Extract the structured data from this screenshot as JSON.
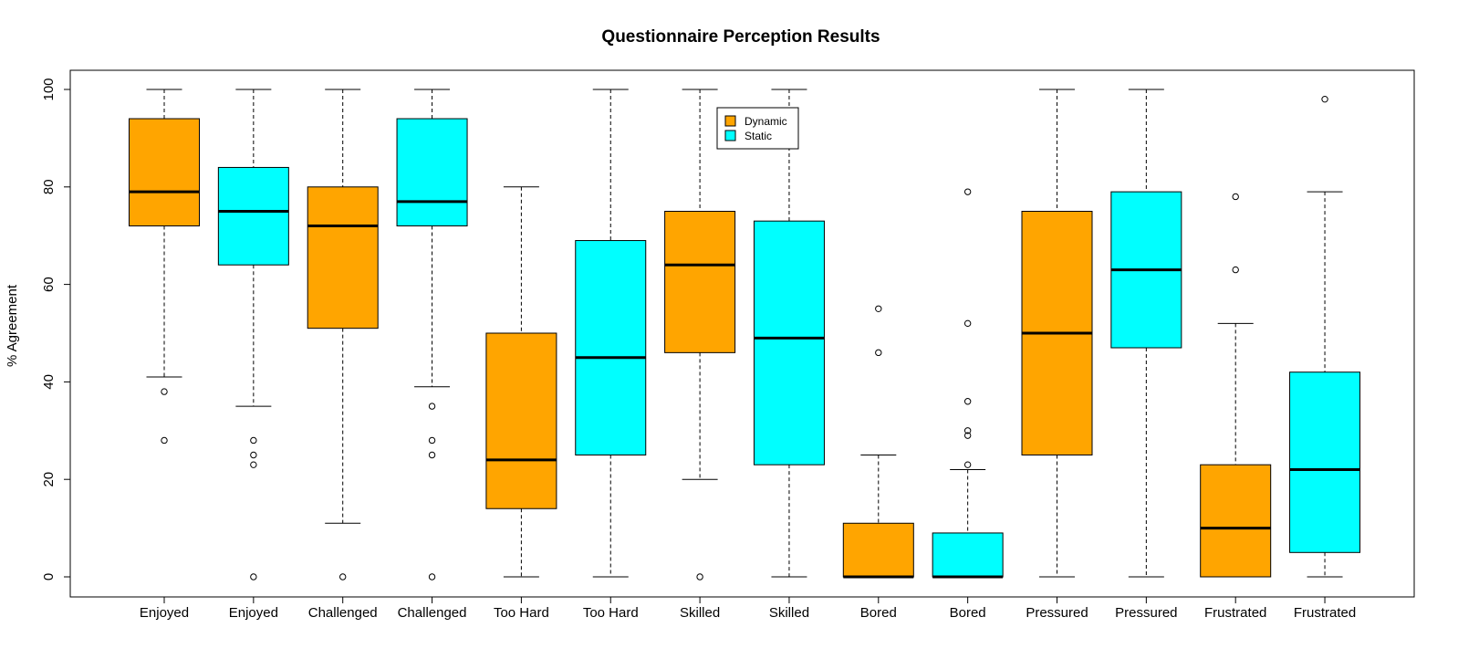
{
  "chart_data": {
    "type": "boxplot",
    "title": "Questionnaire Perception Results",
    "xlabel": "",
    "ylabel": "% Agreement",
    "ylim": [
      0,
      100
    ],
    "yticks": [
      0,
      20,
      40,
      60,
      80,
      100
    ],
    "grid": false,
    "legend_position": "top-center",
    "legend": [
      {
        "name": "Dynamic",
        "color": "#FFA500"
      },
      {
        "name": "Static",
        "color": "#00FFFF"
      }
    ],
    "boxes": [
      {
        "category": "Enjoyed",
        "group": "Dynamic",
        "whisker_low": 41,
        "q1": 72,
        "median": 79,
        "q3": 94,
        "whisker_high": 100,
        "outliers": [
          38,
          28
        ]
      },
      {
        "category": "Enjoyed",
        "group": "Static",
        "whisker_low": 35,
        "q1": 64,
        "median": 75,
        "q3": 84,
        "whisker_high": 100,
        "outliers": [
          28,
          25,
          23,
          0
        ]
      },
      {
        "category": "Challenged",
        "group": "Dynamic",
        "whisker_low": 11,
        "q1": 51,
        "median": 72,
        "q3": 80,
        "whisker_high": 100,
        "outliers": [
          0
        ]
      },
      {
        "category": "Challenged",
        "group": "Static",
        "whisker_low": 39,
        "q1": 72,
        "median": 77,
        "q3": 94,
        "whisker_high": 100,
        "outliers": [
          35,
          28,
          25,
          0
        ]
      },
      {
        "category": "Too Hard",
        "group": "Dynamic",
        "whisker_low": 0,
        "q1": 14,
        "median": 24,
        "q3": 50,
        "whisker_high": 80,
        "outliers": []
      },
      {
        "category": "Too Hard",
        "group": "Static",
        "whisker_low": 0,
        "q1": 25,
        "median": 45,
        "q3": 69,
        "whisker_high": 100,
        "outliers": []
      },
      {
        "category": "Skilled",
        "group": "Dynamic",
        "whisker_low": 20,
        "q1": 46,
        "median": 64,
        "q3": 75,
        "whisker_high": 100,
        "outliers": [
          0
        ]
      },
      {
        "category": "Skilled",
        "group": "Static",
        "whisker_low": 0,
        "q1": 23,
        "median": 49,
        "q3": 73,
        "whisker_high": 100,
        "outliers": []
      },
      {
        "category": "Bored",
        "group": "Dynamic",
        "whisker_low": 0,
        "q1": 0,
        "median": 0,
        "q3": 11,
        "whisker_high": 25,
        "outliers": [
          55,
          46
        ]
      },
      {
        "category": "Bored",
        "group": "Static",
        "whisker_low": 0,
        "q1": 0,
        "median": 0,
        "q3": 9,
        "whisker_high": 22,
        "outliers": [
          79,
          52,
          36,
          30,
          29,
          23
        ]
      },
      {
        "category": "Pressured",
        "group": "Dynamic",
        "whisker_low": 0,
        "q1": 25,
        "median": 50,
        "q3": 75,
        "whisker_high": 100,
        "outliers": []
      },
      {
        "category": "Pressured",
        "group": "Static",
        "whisker_low": 0,
        "q1": 47,
        "median": 63,
        "q3": 79,
        "whisker_high": 100,
        "outliers": []
      },
      {
        "category": "Frustrated",
        "group": "Dynamic",
        "whisker_low": 0,
        "q1": 0,
        "median": 10,
        "q3": 23,
        "whisker_high": 52,
        "outliers": [
          78,
          63
        ]
      },
      {
        "category": "Frustrated",
        "group": "Static",
        "whisker_low": 0,
        "q1": 5,
        "median": 22,
        "q3": 42,
        "whisker_high": 79,
        "outliers": [
          98
        ]
      }
    ]
  }
}
